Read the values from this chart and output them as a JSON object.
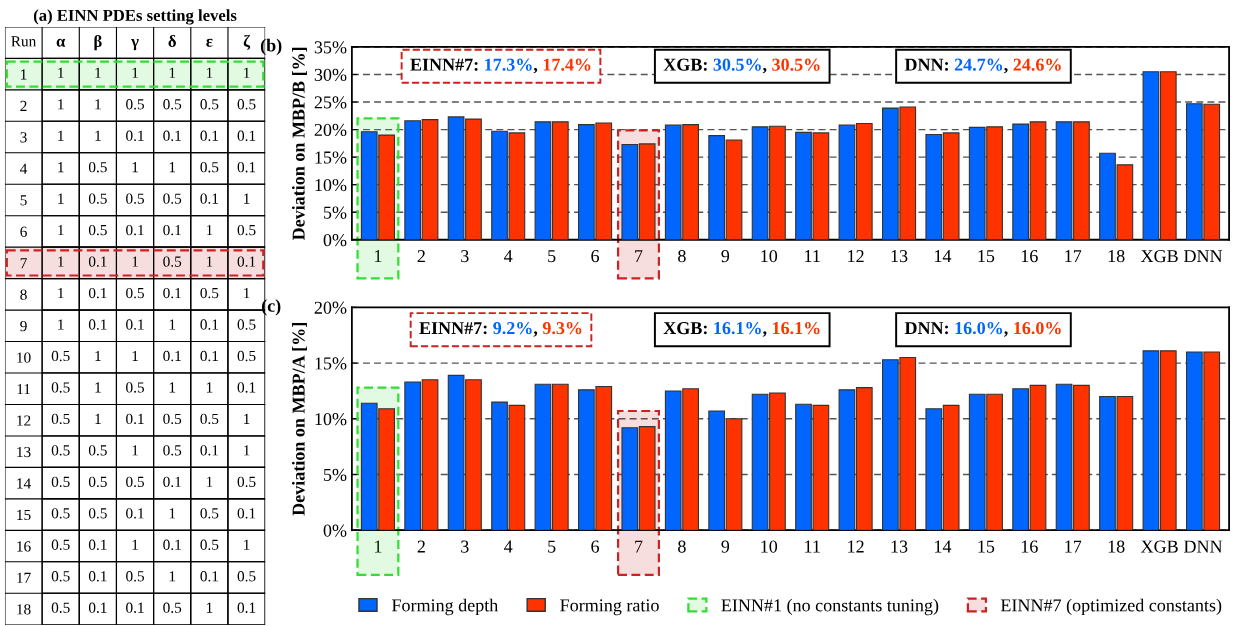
{
  "chart_data": [
    {
      "type": "heatmap",
      "title": "(a) EINN PDEs setting levels",
      "ylabel": "Run",
      "categories": [
        "α",
        "β",
        "γ",
        "δ",
        "ε",
        "ζ"
      ],
      "y_categories": [
        "1",
        "2",
        "3",
        "4",
        "5",
        "6",
        "7",
        "8",
        "9",
        "10",
        "11",
        "12",
        "13",
        "14",
        "15",
        "16",
        "17",
        "18"
      ],
      "cells": [
        [
          1,
          1,
          1,
          1,
          1,
          1
        ],
        [
          1,
          1,
          0.5,
          0.5,
          0.5,
          0.5
        ],
        [
          1,
          1,
          0.1,
          0.1,
          0.1,
          0.1
        ],
        [
          1,
          0.5,
          1,
          1,
          0.5,
          0.1
        ],
        [
          1,
          0.5,
          0.5,
          0.5,
          0.1,
          1
        ],
        [
          1,
          0.5,
          0.1,
          0.1,
          1,
          0.5
        ],
        [
          1,
          0.1,
          1,
          0.5,
          1,
          0.1
        ],
        [
          1,
          0.1,
          0.5,
          0.1,
          0.5,
          1
        ],
        [
          1,
          0.1,
          0.1,
          1,
          0.1,
          0.5
        ],
        [
          0.5,
          1,
          1,
          0.1,
          0.1,
          0.5
        ],
        [
          0.5,
          1,
          0.5,
          1,
          1,
          0.1
        ],
        [
          0.5,
          1,
          0.1,
          0.5,
          0.5,
          1
        ],
        [
          0.5,
          0.5,
          1,
          0.5,
          0.1,
          1
        ],
        [
          0.5,
          0.5,
          0.5,
          0.1,
          1,
          0.5
        ],
        [
          0.5,
          0.5,
          0.1,
          1,
          0.5,
          0.1
        ],
        [
          0.5,
          0.1,
          1,
          0.1,
          0.5,
          1
        ],
        [
          0.5,
          0.1,
          0.5,
          1,
          0.1,
          0.5
        ],
        [
          0.5,
          0.1,
          0.1,
          0.5,
          1,
          0.1
        ]
      ],
      "data_labels": true,
      "bands": [
        {
          "axis": "y",
          "from": "1",
          "to": "1",
          "color": "#33dd33"
        },
        {
          "axis": "y",
          "from": "7",
          "to": "7",
          "color": "#cc2222"
        }
      ]
    },
    {
      "type": "bar",
      "title": "(b)",
      "ylabel": "Deviation on MBP/B [%]",
      "categories": [
        "1",
        "2",
        "3",
        "4",
        "5",
        "6",
        "7",
        "8",
        "9",
        "10",
        "11",
        "12",
        "13",
        "14",
        "15",
        "16",
        "17",
        "18",
        "XGB",
        "DNN"
      ],
      "series": [
        {
          "name": "Forming depth",
          "color": "#0066ff",
          "values": [
            19.6,
            21.6,
            22.3,
            19.7,
            21.4,
            20.9,
            17.3,
            20.8,
            18.9,
            20.5,
            19.5,
            20.8,
            23.9,
            19.1,
            20.4,
            21.0,
            21.4,
            15.7,
            30.5,
            24.7
          ]
        },
        {
          "name": "Forming ratio",
          "color": "#ff3300",
          "values": [
            19.0,
            21.8,
            21.9,
            19.4,
            21.4,
            21.2,
            17.4,
            20.9,
            18.1,
            20.6,
            19.4,
            21.1,
            24.1,
            19.4,
            20.5,
            21.4,
            21.4,
            13.6,
            30.5,
            24.6
          ]
        }
      ],
      "ylim": [
        0,
        35
      ],
      "yticks": [
        {
          "value": 0,
          "label": "0%"
        },
        {
          "value": 5,
          "label": "5%"
        },
        {
          "value": 10,
          "label": "10%"
        },
        {
          "value": 15,
          "label": "15%"
        },
        {
          "value": 20,
          "label": "20%"
        },
        {
          "value": 25,
          "label": "25%"
        },
        {
          "value": 30,
          "label": "30%"
        },
        {
          "value": 35,
          "label": "35%"
        }
      ],
      "grid": "y",
      "legend": "bottom",
      "annotations": [
        "EINN#7: 17.3%, 17.4%",
        "XGB: 30.5%, 30.5%",
        "DNN: 24.7%, 24.6%"
      ],
      "bands": [
        {
          "axis": "x",
          "from": "1",
          "to": "1",
          "label": "EINN#1 (no constants tuning)",
          "color": "#33dd33"
        },
        {
          "axis": "x",
          "from": "7",
          "to": "7",
          "label": "EINN#7 (optimized constants)",
          "color": "#cc2222"
        }
      ]
    },
    {
      "type": "bar",
      "title": "(c)",
      "ylabel": "Deviation on MBP/A [%]",
      "categories": [
        "1",
        "2",
        "3",
        "4",
        "5",
        "6",
        "7",
        "8",
        "9",
        "10",
        "11",
        "12",
        "13",
        "14",
        "15",
        "16",
        "17",
        "18",
        "XGB",
        "DNN"
      ],
      "series": [
        {
          "color": "#0066ff",
          "values": [
            11.4,
            13.3,
            13.9,
            11.5,
            13.1,
            12.6,
            9.2,
            12.5,
            10.7,
            12.2,
            11.3,
            12.6,
            15.3,
            10.9,
            12.2,
            12.7,
            13.1,
            12.0,
            16.1,
            16.0
          ]
        },
        {
          "color": "#ff3300",
          "values": [
            10.9,
            13.5,
            13.5,
            11.2,
            13.1,
            12.9,
            9.3,
            12.7,
            10.0,
            12.3,
            11.2,
            12.8,
            15.5,
            11.2,
            12.2,
            13.0,
            13.0,
            12.0,
            16.1,
            16.0
          ]
        }
      ],
      "ylim": [
        0,
        20
      ],
      "yticks": [
        {
          "value": 0,
          "label": "0%"
        },
        {
          "value": 5,
          "label": "5%"
        },
        {
          "value": 10,
          "label": "10%"
        },
        {
          "value": 15,
          "label": "15%"
        },
        {
          "value": 20,
          "label": "20%"
        }
      ],
      "grid": "y",
      "annotations": [
        "EINN#7: 9.2%, 9.3%",
        "XGB: 16.1%, 16.1%",
        "DNN: 16.0%, 16.0%"
      ],
      "bands": [
        {
          "axis": "x",
          "from": "1",
          "to": "1",
          "color": "#33dd33"
        },
        {
          "axis": "x",
          "from": "7",
          "to": "7",
          "color": "#cc2222"
        }
      ]
    }
  ]
}
